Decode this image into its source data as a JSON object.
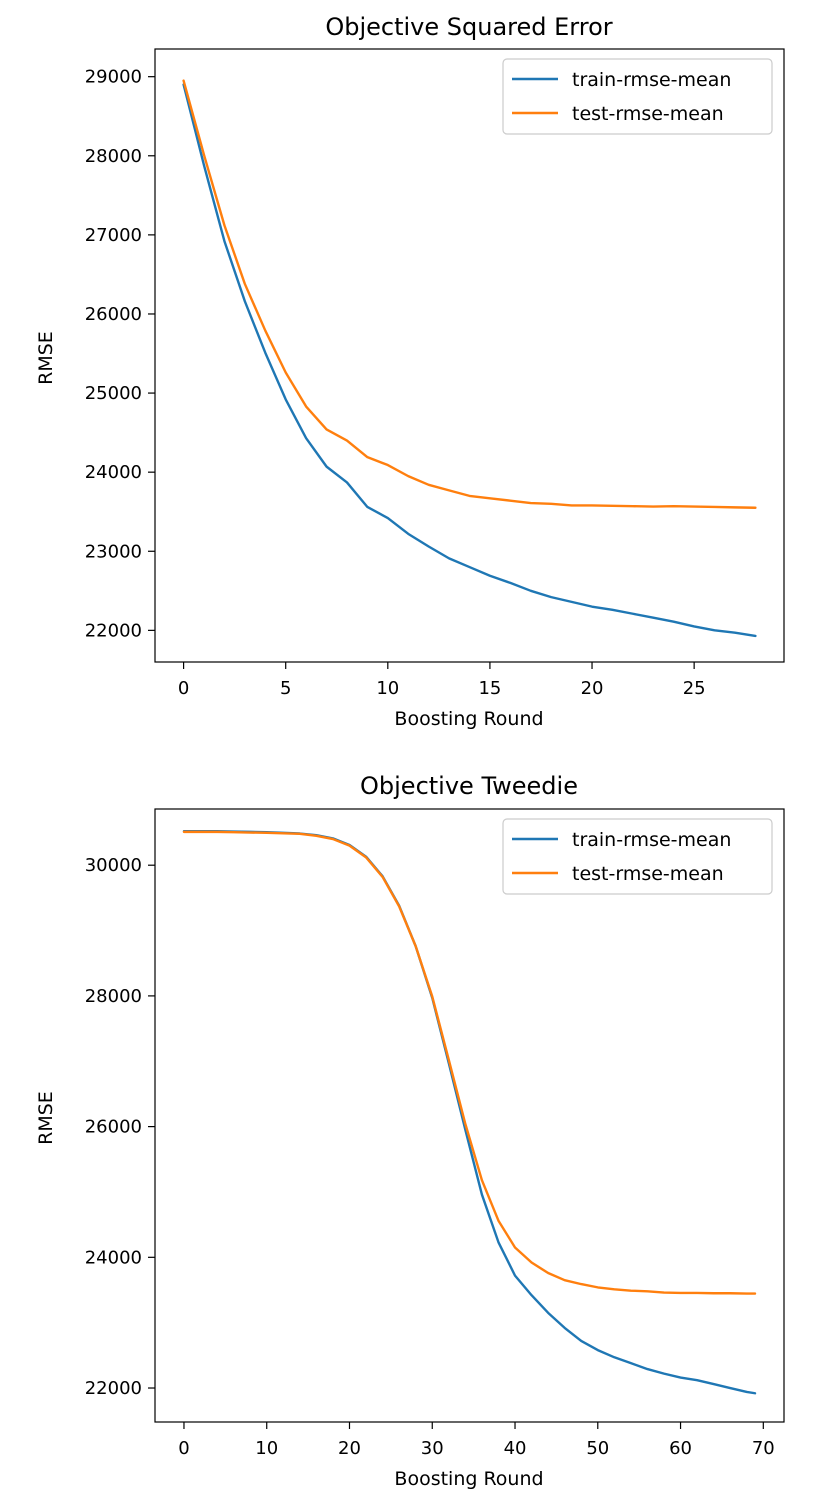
{
  "chart_data": [
    {
      "type": "line",
      "title": "Objective Squared Error",
      "xlabel": "Boosting Round",
      "ylabel": "RMSE",
      "xlim": [
        -1.4,
        29.4
      ],
      "ylim": [
        21600,
        29350
      ],
      "xticks": [
        0,
        5,
        10,
        15,
        20,
        25
      ],
      "yticks": [
        22000,
        23000,
        24000,
        25000,
        26000,
        27000,
        28000,
        29000
      ],
      "grid": false,
      "legend_position": "top-right",
      "series": [
        {
          "name": "train-rmse-mean",
          "color": "#1f77b4",
          "x": [
            0,
            1,
            2,
            3,
            4,
            5,
            6,
            7,
            8,
            9,
            10,
            11,
            12,
            13,
            14,
            15,
            16,
            17,
            18,
            19,
            20,
            21,
            22,
            23,
            24,
            25,
            26,
            27,
            28
          ],
          "values": [
            28900,
            27880,
            26920,
            26160,
            25510,
            24920,
            24430,
            24070,
            23870,
            23560,
            23420,
            23220,
            23060,
            22910,
            22800,
            22690,
            22600,
            22500,
            22420,
            22360,
            22300,
            22260,
            22210,
            22160,
            22110,
            22050,
            22000,
            21970,
            21930
          ]
        },
        {
          "name": "test-rmse-mean",
          "color": "#ff7f0e",
          "x": [
            0,
            1,
            2,
            3,
            4,
            5,
            6,
            7,
            8,
            9,
            10,
            11,
            12,
            13,
            14,
            15,
            16,
            17,
            18,
            19,
            20,
            21,
            22,
            23,
            24,
            25,
            26,
            27,
            28
          ],
          "values": [
            28950,
            28010,
            27120,
            26380,
            25790,
            25260,
            24830,
            24540,
            24400,
            24190,
            24090,
            23950,
            23840,
            23770,
            23700,
            23670,
            23640,
            23610,
            23600,
            23580,
            23580,
            23575,
            23570,
            23565,
            23570,
            23565,
            23560,
            23555,
            23550
          ]
        }
      ]
    },
    {
      "type": "line",
      "title": "Objective Tweedie",
      "xlabel": "Boosting Round",
      "ylabel": "RMSE",
      "xlim": [
        -3.5,
        72.5
      ],
      "ylim": [
        21480,
        30860
      ],
      "xticks": [
        0,
        10,
        20,
        30,
        40,
        50,
        60,
        70
      ],
      "yticks": [
        22000,
        24000,
        26000,
        28000,
        30000
      ],
      "grid": false,
      "legend_position": "top-right",
      "series": [
        {
          "name": "train-rmse-mean",
          "color": "#1f77b4",
          "x": [
            0,
            2,
            4,
            6,
            8,
            10,
            12,
            14,
            16,
            18,
            20,
            22,
            24,
            26,
            28,
            30,
            32,
            34,
            36,
            38,
            40,
            42,
            44,
            46,
            48,
            50,
            52,
            54,
            56,
            58,
            60,
            62,
            64,
            66,
            68,
            69
          ],
          "values": [
            30520,
            30520,
            30520,
            30515,
            30510,
            30505,
            30495,
            30485,
            30460,
            30410,
            30310,
            30130,
            29830,
            29380,
            28760,
            27970,
            26970,
            25950,
            24960,
            24230,
            23720,
            23420,
            23150,
            22920,
            22720,
            22580,
            22470,
            22380,
            22290,
            22220,
            22160,
            22120,
            22060,
            22000,
            21940,
            21920
          ]
        },
        {
          "name": "test-rmse-mean",
          "color": "#ff7f0e",
          "x": [
            0,
            2,
            4,
            6,
            8,
            10,
            12,
            14,
            16,
            18,
            20,
            22,
            24,
            26,
            28,
            30,
            32,
            34,
            36,
            38,
            40,
            42,
            44,
            46,
            48,
            50,
            52,
            54,
            56,
            58,
            60,
            62,
            64,
            66,
            68,
            69
          ],
          "values": [
            30510,
            30510,
            30510,
            30505,
            30500,
            30495,
            30488,
            30480,
            30450,
            30400,
            30300,
            30120,
            29820,
            29370,
            28760,
            27990,
            27020,
            26040,
            25180,
            24560,
            24150,
            23920,
            23760,
            23650,
            23590,
            23540,
            23510,
            23490,
            23480,
            23460,
            23455,
            23455,
            23450,
            23450,
            23445,
            23445
          ]
        }
      ]
    }
  ]
}
